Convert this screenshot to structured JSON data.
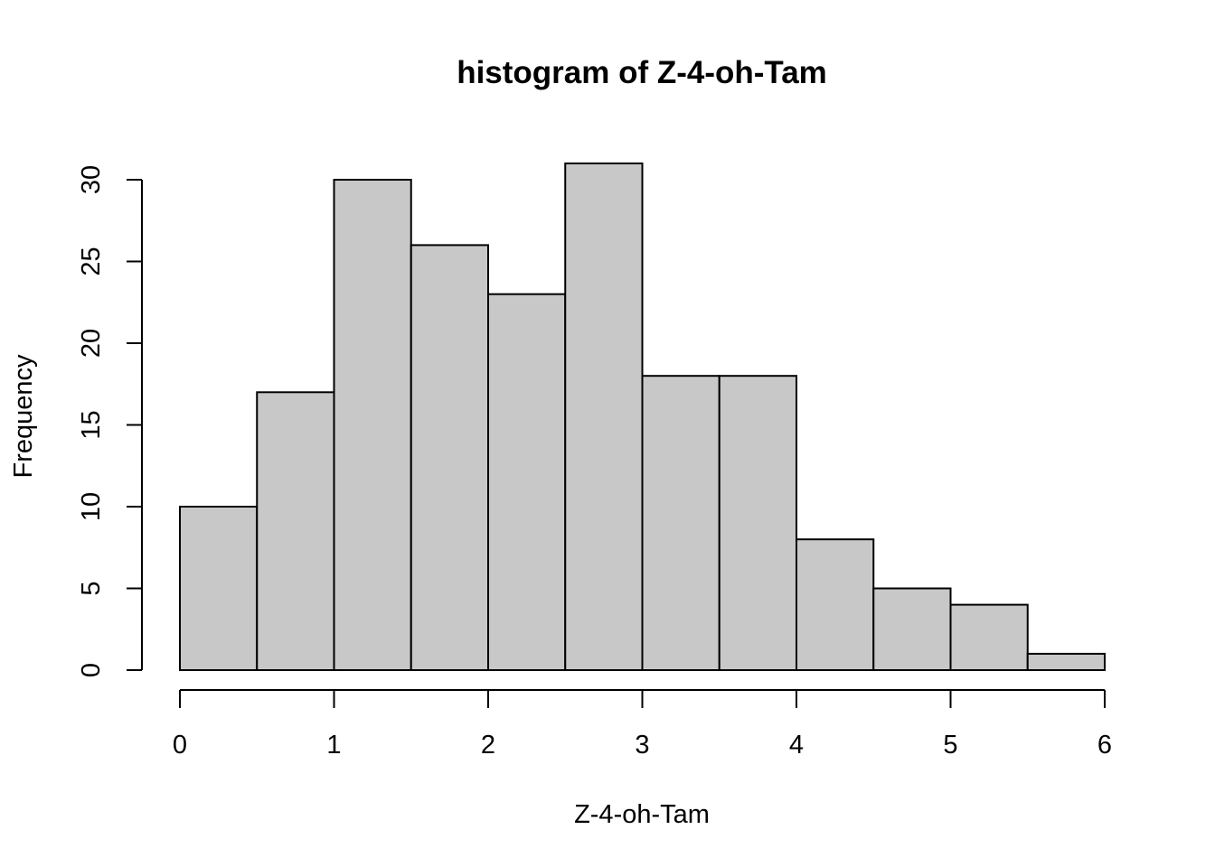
{
  "chart_data": {
    "type": "bar",
    "title": "histogram of Z-4-oh-Tam",
    "xlabel": "Z-4-oh-Tam",
    "ylabel": "Frequency",
    "bins": [
      {
        "x0": 0.0,
        "x1": 0.5,
        "count": 10
      },
      {
        "x0": 0.5,
        "x1": 1.0,
        "count": 17
      },
      {
        "x0": 1.0,
        "x1": 1.5,
        "count": 30
      },
      {
        "x0": 1.5,
        "x1": 2.0,
        "count": 26
      },
      {
        "x0": 2.0,
        "x1": 2.5,
        "count": 23
      },
      {
        "x0": 2.5,
        "x1": 3.0,
        "count": 31
      },
      {
        "x0": 3.0,
        "x1": 3.5,
        "count": 18
      },
      {
        "x0": 3.5,
        "x1": 4.0,
        "count": 18
      },
      {
        "x0": 4.0,
        "x1": 4.5,
        "count": 8
      },
      {
        "x0": 4.5,
        "x1": 5.0,
        "count": 5
      },
      {
        "x0": 5.0,
        "x1": 5.5,
        "count": 4
      },
      {
        "x0": 5.5,
        "x1": 6.0,
        "count": 1
      }
    ],
    "xlim": [
      0,
      6
    ],
    "ylim": [
      0,
      30
    ],
    "x_ticks": [
      "0",
      "1",
      "2",
      "3",
      "4",
      "5",
      "6"
    ],
    "y_ticks": [
      "0",
      "5",
      "10",
      "15",
      "20",
      "25",
      "30"
    ],
    "bar_color": "#c8c8c8",
    "edge_color": "#000000",
    "grid": false,
    "legend": "none"
  }
}
